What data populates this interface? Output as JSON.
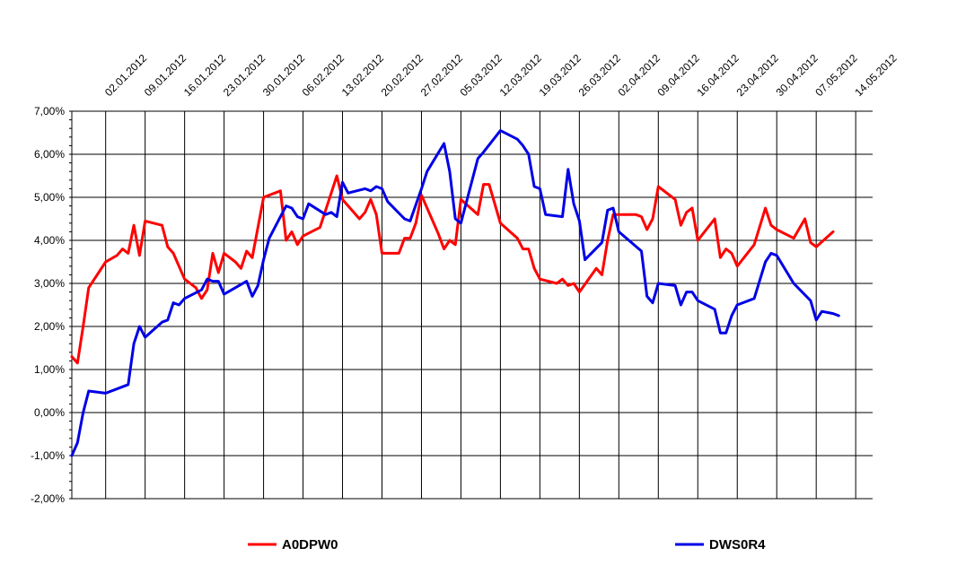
{
  "chart_data": {
    "type": "line",
    "title": "",
    "xlabel": "",
    "ylabel": "",
    "ylim": [
      -2.0,
      7.0
    ],
    "y_ticks": [
      "7,00%",
      "6,00%",
      "5,00%",
      "4,00%",
      "3,00%",
      "2,00%",
      "1,00%",
      "0,00%",
      "-1,00%",
      "-2,00%"
    ],
    "y_tick_values": [
      7,
      6,
      5,
      4,
      3,
      2,
      1,
      0,
      -1,
      -2
    ],
    "x_axis": "dates",
    "x_start": "2011-12-27",
    "x_end": "2012-05-17",
    "x_ticks": [
      "02.01.2012",
      "09.01.2012",
      "16.01.2012",
      "23.01.2012",
      "30.01.2012",
      "06.02.2012",
      "13.02.2012",
      "20.02.2012",
      "27.02.2012",
      "05.03.2012",
      "12.03.2012",
      "19.03.2012",
      "26.03.2012",
      "02.04.2012",
      "09.04.2012",
      "16.04.2012",
      "23.04.2012",
      "30.04.2012",
      "07.05.2012",
      "14.05.2012"
    ],
    "x_tick_dates": [
      "2012-01-02",
      "2012-01-09",
      "2012-01-16",
      "2012-01-23",
      "2012-01-30",
      "2012-02-06",
      "2012-02-13",
      "2012-02-20",
      "2012-02-27",
      "2012-03-05",
      "2012-03-12",
      "2012-03-19",
      "2012-03-26",
      "2012-04-02",
      "2012-04-09",
      "2012-04-16",
      "2012-04-23",
      "2012-04-30",
      "2012-05-07",
      "2012-05-14"
    ],
    "grid": true,
    "legend_position": "bottom",
    "series": [
      {
        "name": "A0DPW0",
        "color": "#ff0000",
        "points": [
          [
            "2011-12-27",
            1.3
          ],
          [
            "2011-12-28",
            1.15
          ],
          [
            "2011-12-29",
            2.0
          ],
          [
            "2011-12-30",
            2.9
          ],
          [
            "2012-01-02",
            3.5
          ],
          [
            "2012-01-04",
            3.65
          ],
          [
            "2012-01-05",
            3.8
          ],
          [
            "2012-01-06",
            3.7
          ],
          [
            "2012-01-07",
            4.35
          ],
          [
            "2012-01-08",
            3.65
          ],
          [
            "2012-01-09",
            4.45
          ],
          [
            "2012-01-12",
            4.35
          ],
          [
            "2012-01-13",
            3.85
          ],
          [
            "2012-01-14",
            3.7
          ],
          [
            "2012-01-16",
            3.1
          ],
          [
            "2012-01-18",
            2.9
          ],
          [
            "2012-01-19",
            2.65
          ],
          [
            "2012-01-20",
            2.85
          ],
          [
            "2012-01-21",
            3.7
          ],
          [
            "2012-01-22",
            3.25
          ],
          [
            "2012-01-23",
            3.7
          ],
          [
            "2012-01-25",
            3.5
          ],
          [
            "2012-01-26",
            3.35
          ],
          [
            "2012-01-27",
            3.75
          ],
          [
            "2012-01-28",
            3.6
          ],
          [
            "2012-01-30",
            5.0
          ],
          [
            "2012-02-02",
            5.15
          ],
          [
            "2012-02-03",
            4.0
          ],
          [
            "2012-02-04",
            4.2
          ],
          [
            "2012-02-05",
            3.9
          ],
          [
            "2012-02-06",
            4.1
          ],
          [
            "2012-02-09",
            4.3
          ],
          [
            "2012-02-11",
            5.1
          ],
          [
            "2012-02-12",
            5.5
          ],
          [
            "2012-02-13",
            4.95
          ],
          [
            "2012-02-16",
            4.5
          ],
          [
            "2012-02-17",
            4.65
          ],
          [
            "2012-02-18",
            4.95
          ],
          [
            "2012-02-19",
            4.6
          ],
          [
            "2012-02-20",
            3.7
          ],
          [
            "2012-02-23",
            3.7
          ],
          [
            "2012-02-24",
            4.05
          ],
          [
            "2012-02-25",
            4.05
          ],
          [
            "2012-02-26",
            4.4
          ],
          [
            "2012-02-27",
            5.05
          ],
          [
            "2012-03-01",
            4.15
          ],
          [
            "2012-03-02",
            3.8
          ],
          [
            "2012-03-03",
            4.0
          ],
          [
            "2012-03-04",
            3.9
          ],
          [
            "2012-03-05",
            4.95
          ],
          [
            "2012-03-08",
            4.6
          ],
          [
            "2012-03-09",
            5.3
          ],
          [
            "2012-03-10",
            5.3
          ],
          [
            "2012-03-12",
            4.4
          ],
          [
            "2012-03-15",
            4.05
          ],
          [
            "2012-03-16",
            3.8
          ],
          [
            "2012-03-17",
            3.8
          ],
          [
            "2012-03-18",
            3.35
          ],
          [
            "2012-03-19",
            3.1
          ],
          [
            "2012-03-22",
            3.0
          ],
          [
            "2012-03-23",
            3.1
          ],
          [
            "2012-03-24",
            2.95
          ],
          [
            "2012-03-25",
            3.0
          ],
          [
            "2012-03-26",
            2.8
          ],
          [
            "2012-03-29",
            3.35
          ],
          [
            "2012-03-30",
            3.2
          ],
          [
            "2012-03-31",
            4.0
          ],
          [
            "2012-04-01",
            4.6
          ],
          [
            "2012-04-02",
            4.6
          ],
          [
            "2012-04-05",
            4.6
          ],
          [
            "2012-04-06",
            4.55
          ],
          [
            "2012-04-07",
            4.25
          ],
          [
            "2012-04-08",
            4.5
          ],
          [
            "2012-04-09",
            5.25
          ],
          [
            "2012-04-12",
            4.95
          ],
          [
            "2012-04-13",
            4.35
          ],
          [
            "2012-04-14",
            4.65
          ],
          [
            "2012-04-15",
            4.75
          ],
          [
            "2012-04-16",
            4.0
          ],
          [
            "2012-04-19",
            4.5
          ],
          [
            "2012-04-20",
            3.6
          ],
          [
            "2012-04-21",
            3.8
          ],
          [
            "2012-04-22",
            3.7
          ],
          [
            "2012-04-23",
            3.4
          ],
          [
            "2012-04-26",
            3.9
          ],
          [
            "2012-04-28",
            4.75
          ],
          [
            "2012-04-29",
            4.35
          ],
          [
            "2012-04-30",
            4.25
          ],
          [
            "2012-05-03",
            4.05
          ],
          [
            "2012-05-05",
            4.5
          ],
          [
            "2012-05-06",
            3.95
          ],
          [
            "2012-05-07",
            3.85
          ],
          [
            "2012-05-10",
            4.2
          ]
        ]
      },
      {
        "name": "DWS0R4",
        "color": "#0000e6",
        "points": [
          [
            "2011-12-27",
            -1.0
          ],
          [
            "2011-12-28",
            -0.7
          ],
          [
            "2011-12-29",
            0.0
          ],
          [
            "2011-12-30",
            0.5
          ],
          [
            "2012-01-02",
            0.45
          ],
          [
            "2012-01-06",
            0.65
          ],
          [
            "2012-01-07",
            1.6
          ],
          [
            "2012-01-08",
            2.0
          ],
          [
            "2012-01-09",
            1.75
          ],
          [
            "2012-01-12",
            2.1
          ],
          [
            "2012-01-13",
            2.15
          ],
          [
            "2012-01-14",
            2.55
          ],
          [
            "2012-01-15",
            2.5
          ],
          [
            "2012-01-16",
            2.65
          ],
          [
            "2012-01-19",
            2.85
          ],
          [
            "2012-01-20",
            3.1
          ],
          [
            "2012-01-21",
            3.05
          ],
          [
            "2012-01-22",
            3.05
          ],
          [
            "2012-01-23",
            2.75
          ],
          [
            "2012-01-27",
            3.05
          ],
          [
            "2012-01-28",
            2.7
          ],
          [
            "2012-01-29",
            2.95
          ],
          [
            "2012-01-30",
            3.55
          ],
          [
            "2012-01-31",
            4.05
          ],
          [
            "2012-02-02",
            4.55
          ],
          [
            "2012-02-03",
            4.8
          ],
          [
            "2012-02-04",
            4.75
          ],
          [
            "2012-02-05",
            4.55
          ],
          [
            "2012-02-06",
            4.5
          ],
          [
            "2012-02-07",
            4.85
          ],
          [
            "2012-02-10",
            4.6
          ],
          [
            "2012-02-11",
            4.65
          ],
          [
            "2012-02-12",
            4.55
          ],
          [
            "2012-02-13",
            5.35
          ],
          [
            "2012-02-14",
            5.1
          ],
          [
            "2012-02-17",
            5.2
          ],
          [
            "2012-02-18",
            5.15
          ],
          [
            "2012-02-19",
            5.25
          ],
          [
            "2012-02-20",
            5.2
          ],
          [
            "2012-02-21",
            4.9
          ],
          [
            "2012-02-24",
            4.5
          ],
          [
            "2012-02-25",
            4.45
          ],
          [
            "2012-02-27",
            5.2
          ],
          [
            "2012-02-28",
            5.6
          ],
          [
            "2012-03-02",
            6.25
          ],
          [
            "2012-03-03",
            5.6
          ],
          [
            "2012-03-04",
            4.5
          ],
          [
            "2012-03-05",
            4.4
          ],
          [
            "2012-03-08",
            5.9
          ],
          [
            "2012-03-09",
            6.05
          ],
          [
            "2012-03-12",
            6.55
          ],
          [
            "2012-03-15",
            6.35
          ],
          [
            "2012-03-16",
            6.2
          ],
          [
            "2012-03-17",
            6.0
          ],
          [
            "2012-03-18",
            5.25
          ],
          [
            "2012-03-19",
            5.2
          ],
          [
            "2012-03-20",
            4.6
          ],
          [
            "2012-03-23",
            4.55
          ],
          [
            "2012-03-24",
            5.65
          ],
          [
            "2012-03-25",
            4.85
          ],
          [
            "2012-03-26",
            4.45
          ],
          [
            "2012-03-27",
            3.55
          ],
          [
            "2012-03-30",
            3.95
          ],
          [
            "2012-03-31",
            4.7
          ],
          [
            "2012-04-01",
            4.75
          ],
          [
            "2012-04-02",
            4.2
          ],
          [
            "2012-04-06",
            3.75
          ],
          [
            "2012-04-07",
            2.7
          ],
          [
            "2012-04-08",
            2.55
          ],
          [
            "2012-04-09",
            3.0
          ],
          [
            "2012-04-12",
            2.95
          ],
          [
            "2012-04-13",
            2.5
          ],
          [
            "2012-04-14",
            2.8
          ],
          [
            "2012-04-15",
            2.8
          ],
          [
            "2012-04-16",
            2.6
          ],
          [
            "2012-04-19",
            2.4
          ],
          [
            "2012-04-20",
            1.85
          ],
          [
            "2012-04-21",
            1.85
          ],
          [
            "2012-04-22",
            2.25
          ],
          [
            "2012-04-23",
            2.5
          ],
          [
            "2012-04-26",
            2.65
          ],
          [
            "2012-04-28",
            3.5
          ],
          [
            "2012-04-29",
            3.7
          ],
          [
            "2012-04-30",
            3.65
          ],
          [
            "2012-05-03",
            3.0
          ],
          [
            "2012-05-06",
            2.6
          ],
          [
            "2012-05-07",
            2.15
          ],
          [
            "2012-05-08",
            2.35
          ],
          [
            "2012-05-10",
            2.3
          ],
          [
            "2012-05-11",
            2.25
          ]
        ]
      }
    ]
  }
}
